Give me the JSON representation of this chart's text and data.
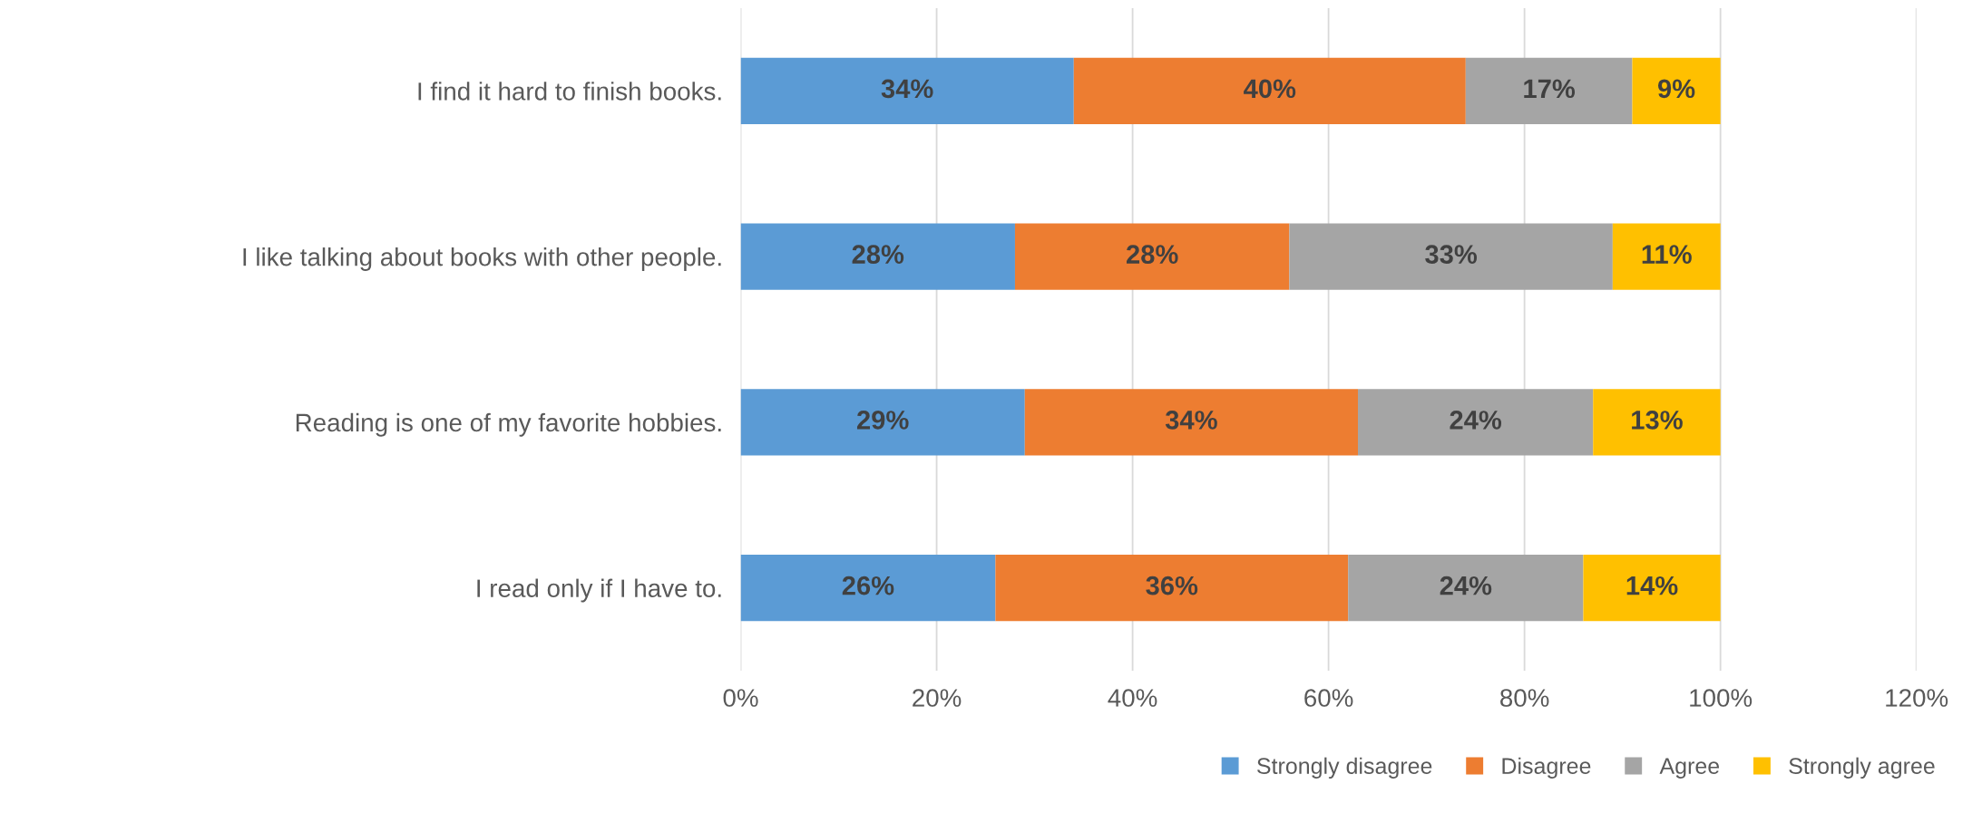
{
  "chart_data": {
    "type": "bar",
    "orientation": "horizontal",
    "stacked": true,
    "categories": [
      "I find it hard to finish books.",
      "I like talking about books with other people.",
      "Reading is one of my favorite hobbies.",
      "I read only if I have to."
    ],
    "series": [
      {
        "name": "Strongly disagree",
        "color": "#5b9bd5",
        "values": [
          34,
          28,
          29,
          26
        ],
        "value_labels": [
          "34%",
          "28%",
          "29%",
          "26%"
        ]
      },
      {
        "name": "Disagree",
        "color": "#ed7d31",
        "values": [
          40,
          28,
          34,
          36
        ],
        "value_labels": [
          "40%",
          "28%",
          "34%",
          "36%"
        ]
      },
      {
        "name": "Agree",
        "color": "#a5a5a5",
        "values": [
          17,
          33,
          24,
          24
        ],
        "value_labels": [
          "17%",
          "33%",
          "24%",
          "24%"
        ]
      },
      {
        "name": "Strongly agree",
        "color": "#ffc000",
        "values": [
          9,
          11,
          13,
          14
        ],
        "value_labels": [
          "9%",
          "11%",
          "13%",
          "14%"
        ]
      }
    ],
    "xlim": [
      0,
      120
    ],
    "xticks": [
      {
        "value": 0,
        "label": "0%"
      },
      {
        "value": 20,
        "label": "20%"
      },
      {
        "value": 40,
        "label": "40%"
      },
      {
        "value": 60,
        "label": "60%"
      },
      {
        "value": 80,
        "label": "80%"
      },
      {
        "value": 100,
        "label": "100%"
      },
      {
        "value": 120,
        "label": "120%"
      }
    ],
    "grid": "x",
    "legend": "bottom"
  }
}
